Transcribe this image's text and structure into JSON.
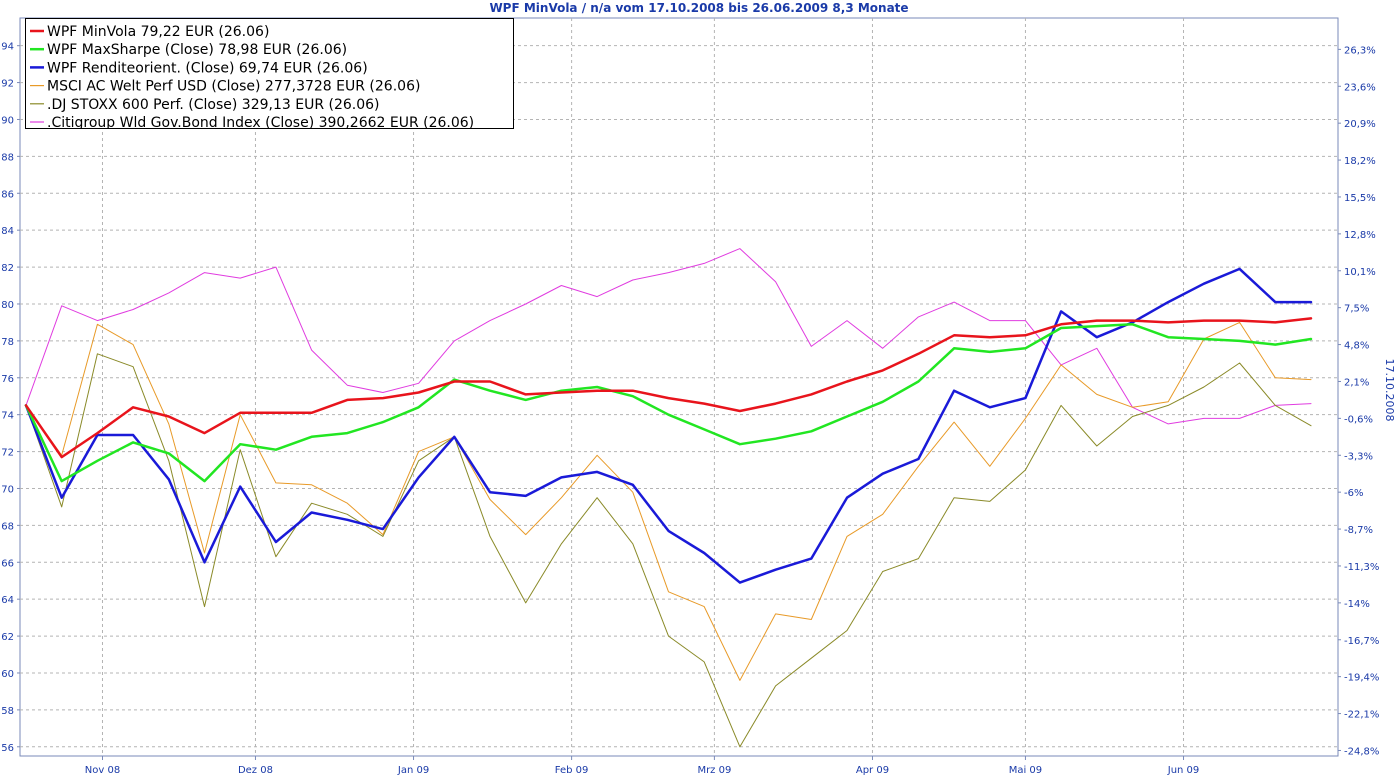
{
  "title": "WPF MinVola / n/a vom 17.10.2008 bis 26.06.2009 8,3 Monate",
  "right_axis_label": "17.10.2008",
  "chart_data": {
    "type": "line",
    "title": "WPF MinVola / n/a vom 17.10.2008 bis 26.06.2009 8,3 Monate",
    "ylim": [
      55.5,
      95.5
    ],
    "y_ticks": [
      94,
      92,
      90,
      88,
      86,
      84,
      82,
      80,
      78,
      76,
      74,
      72,
      70,
      68,
      66,
      64,
      62,
      60,
      58,
      56
    ],
    "right_ticks": [
      "26,3%",
      "23,6%",
      "20,9%",
      "18,2%",
      "15,5%",
      "12,8%",
      "10,1%",
      "7,5%",
      "4,8%",
      "2,1%",
      "-0,6%",
      "-3,3%",
      "-6%",
      "-8,7%",
      "-11,3%",
      "-14%",
      "-16,7%",
      "-19,4%",
      "-22,1%",
      "-24,8%"
    ],
    "right_tick_values": [
      93.8,
      91.8,
      89.8,
      87.8,
      85.8,
      83.8,
      81.8,
      79.8,
      77.8,
      75.8,
      73.8,
      71.8,
      69.8,
      67.8,
      65.8,
      63.8,
      61.8,
      59.8,
      57.8,
      55.8
    ],
    "x_range": [
      "2008-10-17",
      "2009-06-26"
    ],
    "x_ticks": [
      {
        "label": "Nov 08",
        "date": "2008-11-01"
      },
      {
        "label": "Dez 08",
        "date": "2008-12-01"
      },
      {
        "label": "Jan 09",
        "date": "2009-01-01"
      },
      {
        "label": "Feb 09",
        "date": "2009-02-01"
      },
      {
        "label": "Mrz 09",
        "date": "2009-03-01"
      },
      {
        "label": "Apr 09",
        "date": "2009-04-01"
      },
      {
        "label": "Mai 09",
        "date": "2009-05-01"
      },
      {
        "label": "Jun 09",
        "date": "2009-06-01"
      }
    ],
    "grid": true,
    "legend_position": "top-left",
    "x": [
      "2008-10-17",
      "2008-10-24",
      "2008-10-31",
      "2008-11-07",
      "2008-11-14",
      "2008-11-21",
      "2008-11-28",
      "2008-12-05",
      "2008-12-12",
      "2008-12-19",
      "2008-12-26",
      "2009-01-02",
      "2009-01-09",
      "2009-01-16",
      "2009-01-23",
      "2009-01-30",
      "2009-02-06",
      "2009-02-13",
      "2009-02-20",
      "2009-02-27",
      "2009-03-06",
      "2009-03-13",
      "2009-03-20",
      "2009-03-27",
      "2009-04-03",
      "2009-04-10",
      "2009-04-17",
      "2009-04-24",
      "2009-05-01",
      "2009-05-08",
      "2009-05-15",
      "2009-05-22",
      "2009-05-29",
      "2009-06-05",
      "2009-06-12",
      "2009-06-19",
      "2009-06-26"
    ],
    "series": [
      {
        "name": "WPF MinVola 79,22 EUR (26.06)",
        "color": "#e8141c",
        "width": 2.5,
        "values": [
          74.5,
          71.7,
          73.0,
          74.4,
          73.9,
          73.0,
          74.1,
          74.1,
          74.1,
          74.8,
          74.9,
          75.2,
          75.8,
          75.8,
          75.1,
          75.2,
          75.3,
          75.3,
          74.9,
          74.6,
          74.2,
          74.6,
          75.1,
          75.8,
          76.4,
          77.3,
          78.3,
          78.2,
          78.3,
          78.9,
          79.1,
          79.1,
          79.0,
          79.1,
          79.1,
          79.0,
          79.22
        ]
      },
      {
        "name": "WPF MaxSharpe (Close) 78,98 EUR (26.06)",
        "color": "#22e622",
        "width": 2.5,
        "values": [
          74.5,
          70.4,
          71.5,
          72.5,
          71.9,
          70.4,
          72.4,
          72.1,
          72.8,
          73.0,
          73.6,
          74.4,
          75.9,
          75.3,
          74.8,
          75.3,
          75.5,
          75.0,
          74.0,
          73.2,
          72.4,
          72.7,
          73.1,
          73.9,
          74.7,
          75.8,
          77.6,
          77.4,
          77.6,
          78.7,
          78.8,
          78.9,
          78.2,
          78.1,
          78.0,
          77.8,
          78.1
        ]
      },
      {
        "name": "WPF Renditeorient. (Close) 69,74 EUR (26.06)",
        "color": "#1a1ad8",
        "width": 2.5,
        "values": [
          74.5,
          69.5,
          72.9,
          72.9,
          70.5,
          66.0,
          70.1,
          67.1,
          68.7,
          68.3,
          67.8,
          70.6,
          72.8,
          69.8,
          69.6,
          70.6,
          70.9,
          70.2,
          67.7,
          66.5,
          64.9,
          65.6,
          66.2,
          69.5,
          70.8,
          71.6,
          75.3,
          74.4,
          74.9,
          79.6,
          78.2,
          79.0,
          80.1,
          81.1,
          81.9,
          80.1,
          80.1
        ]
      },
      {
        "name": "MSCI AC Welt Perf USD (Close) 277,3728 EUR (26.06)",
        "color": "#e89a28",
        "width": 1,
        "values": [
          74.5,
          71.8,
          78.9,
          77.8,
          73.5,
          66.5,
          74.0,
          70.3,
          70.2,
          69.2,
          67.5,
          72.0,
          72.8,
          69.4,
          67.5,
          69.5,
          71.8,
          69.8,
          64.4,
          63.6,
          59.6,
          63.2,
          62.9,
          67.4,
          68.6,
          71.2,
          73.6,
          71.2,
          73.8,
          76.7,
          75.1,
          74.4,
          74.7,
          78.1,
          79.0,
          76.0,
          75.9
        ]
      },
      {
        "name": ".DJ STOXX 600 Perf. (Close) 329,13 EUR (26.06)",
        "color": "#8a8a28",
        "width": 1,
        "values": [
          74.5,
          69.0,
          77.3,
          76.6,
          71.5,
          63.6,
          72.1,
          66.3,
          69.2,
          68.6,
          67.4,
          71.5,
          72.8,
          67.4,
          63.8,
          67.0,
          69.5,
          67.0,
          62.0,
          60.6,
          56.0,
          59.3,
          60.8,
          62.3,
          65.5,
          66.2,
          69.5,
          69.3,
          71.0,
          74.5,
          72.3,
          73.9,
          74.5,
          75.5,
          76.8,
          74.5,
          73.4
        ]
      },
      {
        "name": ".Citigroup Wld Gov.Bond Index (Close) 390,2662 EUR (26.06)",
        "color": "#e03ce0",
        "width": 1,
        "values": [
          74.5,
          79.9,
          79.1,
          79.7,
          80.6,
          81.7,
          81.4,
          82.0,
          77.5,
          75.6,
          75.2,
          75.7,
          78.0,
          79.1,
          80.0,
          81.0,
          80.4,
          81.3,
          81.7,
          82.2,
          83.0,
          81.2,
          77.7,
          79.1,
          77.6,
          79.3,
          80.1,
          79.1,
          79.1,
          76.7,
          77.6,
          74.4,
          73.5,
          73.8,
          73.8,
          74.5,
          74.6
        ]
      }
    ]
  }
}
